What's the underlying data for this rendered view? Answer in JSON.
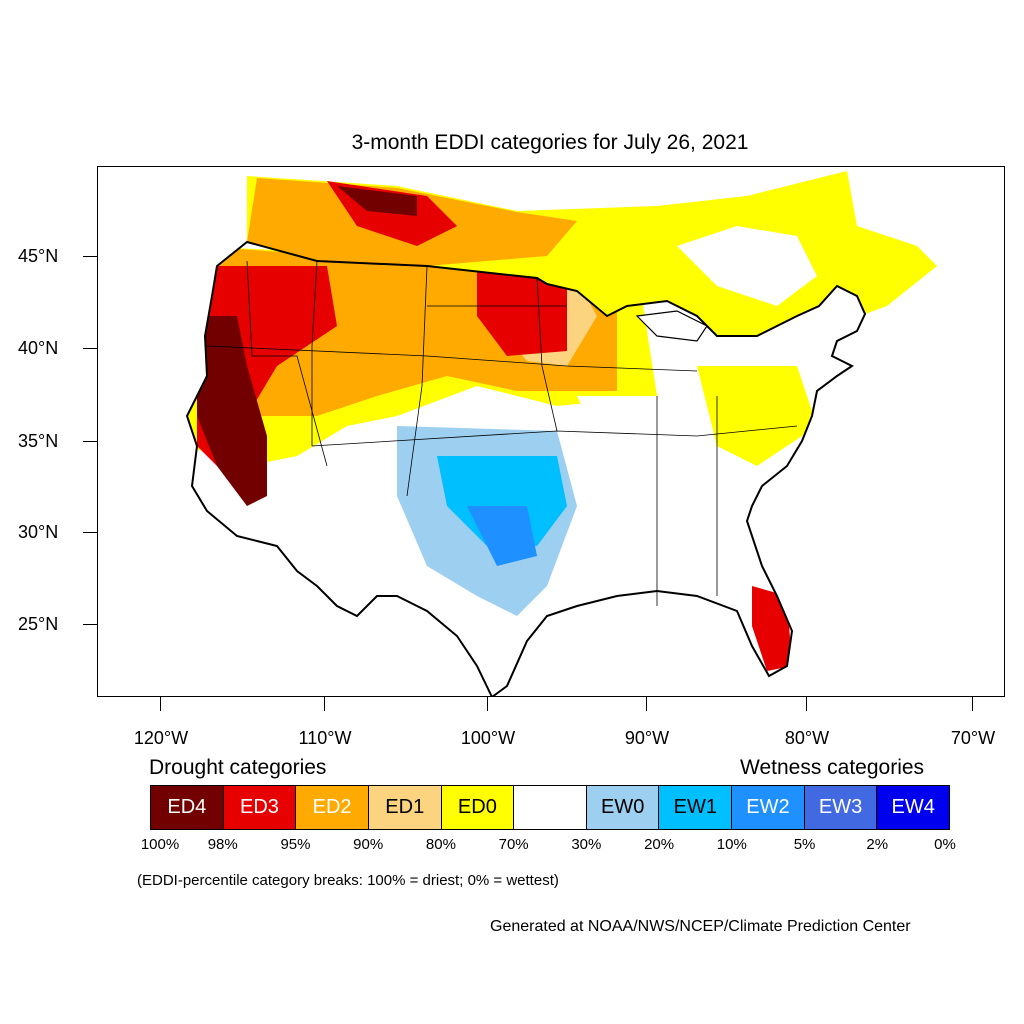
{
  "title": "3-month EDDI categories for July 26, 2021",
  "lat_labels": [
    "45°N",
    "40°N",
    "35°N",
    "30°N",
    "25°N"
  ],
  "lon_labels": [
    "120°W",
    "110°W",
    "100°W",
    "90°W",
    "80°W",
    "70°W"
  ],
  "legend": {
    "drought_heading": "Drought categories",
    "wetness_heading": "Wetness categories",
    "boxes": [
      {
        "label": "ED4",
        "color": "#730000",
        "text_color": "#ffffff"
      },
      {
        "label": "ED3",
        "color": "#e60000",
        "text_color": "#ffffff"
      },
      {
        "label": "ED2",
        "color": "#ffaa00",
        "text_color": "#ffffff"
      },
      {
        "label": "ED1",
        "color": "#fcd37f",
        "text_color": "#000000"
      },
      {
        "label": "ED0",
        "color": "#ffff00",
        "text_color": "#000000"
      },
      {
        "label": "",
        "color": "#ffffff",
        "text_color": "#000000"
      },
      {
        "label": "EW0",
        "color": "#9dcff0",
        "text_color": "#000000"
      },
      {
        "label": "EW1",
        "color": "#00bfff",
        "text_color": "#000000"
      },
      {
        "label": "EW2",
        "color": "#1e90ff",
        "text_color": "#ffffff"
      },
      {
        "label": "EW3",
        "color": "#4169e1",
        "text_color": "#ffffff"
      },
      {
        "label": "EW4",
        "color": "#0000ee",
        "text_color": "#ffffff"
      }
    ],
    "percent_breaks": [
      "100%",
      "98%",
      "95%",
      "90%",
      "80%",
      "70%",
      "30%",
      "20%",
      "10%",
      "5%",
      "2%",
      "0%"
    ],
    "note": "(EDDI-percentile category breaks: 100% = driest; 0% = wettest)"
  },
  "credit": "Generated at NOAA/NWS/NCEP/Climate Prediction Center"
}
